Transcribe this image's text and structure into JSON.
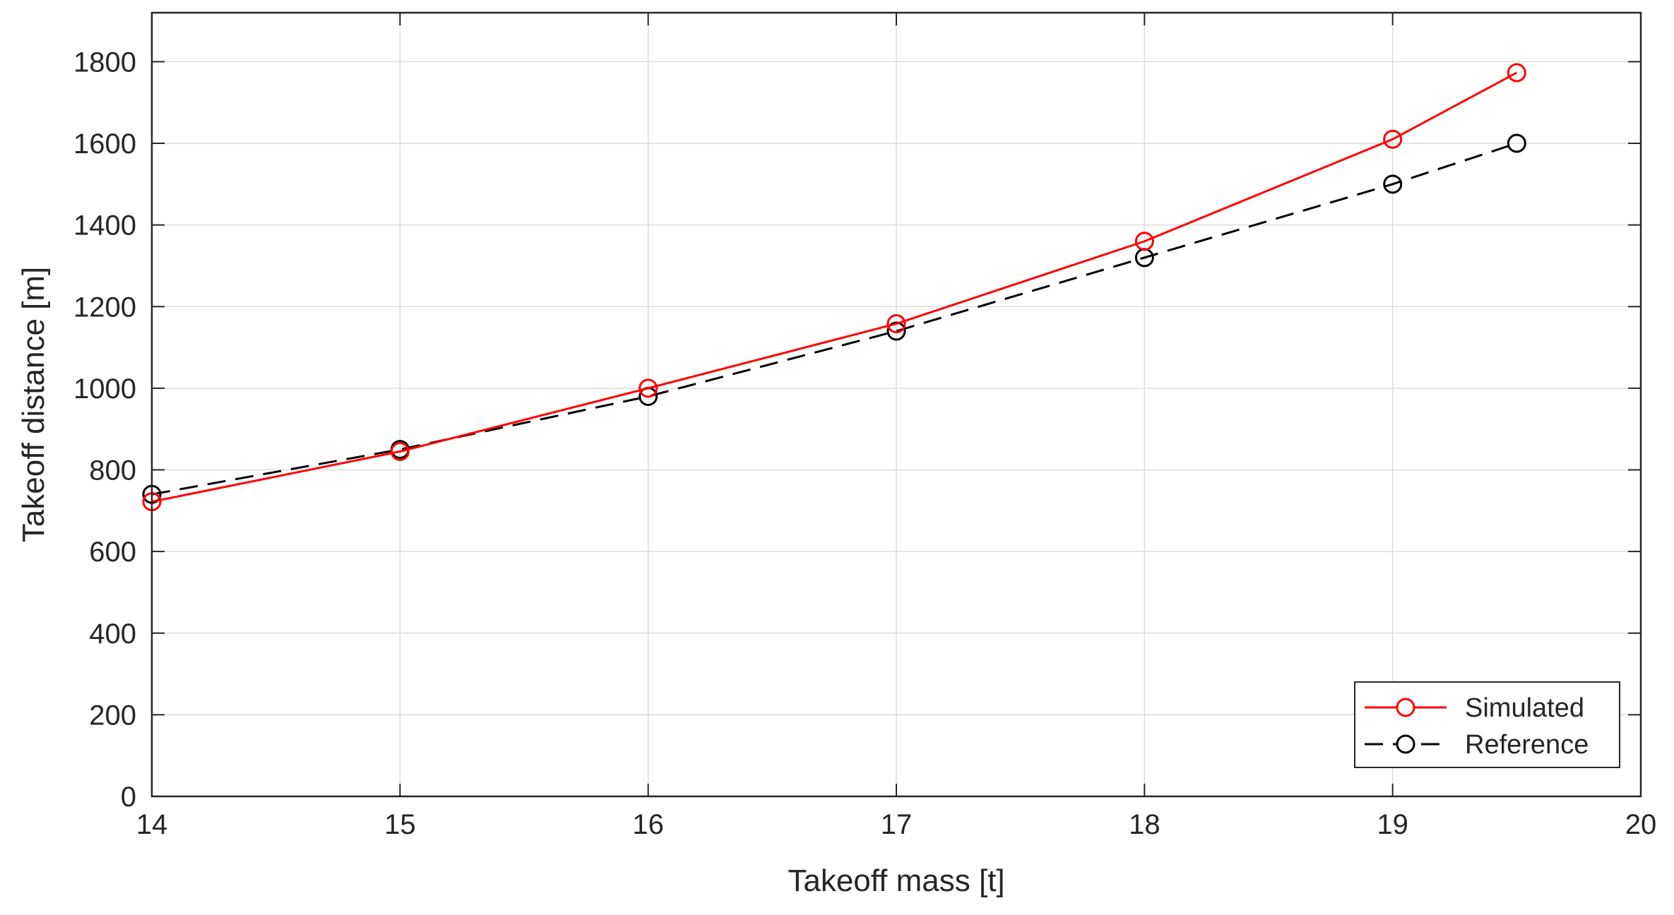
{
  "chart_data": {
    "type": "line",
    "title": "",
    "xlabel": "Takeoff mass [t]",
    "ylabel": "Takeoff distance [m]",
    "xlim": [
      14,
      20
    ],
    "ylim": [
      0,
      1920
    ],
    "xticks": [
      14,
      15,
      16,
      17,
      18,
      19,
      20
    ],
    "yticks": [
      0,
      200,
      400,
      600,
      800,
      1000,
      1200,
      1400,
      1600,
      1800
    ],
    "grid": true,
    "legend_position": "bottom-right",
    "series": [
      {
        "name": "Simulated",
        "color": "#ff0000",
        "line_style": "solid",
        "marker": "circle",
        "x": [
          14,
          15,
          16,
          17,
          18,
          19,
          19.5
        ],
        "y": [
          722,
          845,
          1000,
          1158,
          1360,
          1610,
          1773
        ]
      },
      {
        "name": "Reference",
        "color": "#000000",
        "line_style": "dashed",
        "marker": "circle",
        "x": [
          14,
          15,
          16,
          17,
          18,
          19,
          19.5
        ],
        "y": [
          740,
          850,
          980,
          1140,
          1320,
          1500,
          1600
        ]
      }
    ]
  }
}
